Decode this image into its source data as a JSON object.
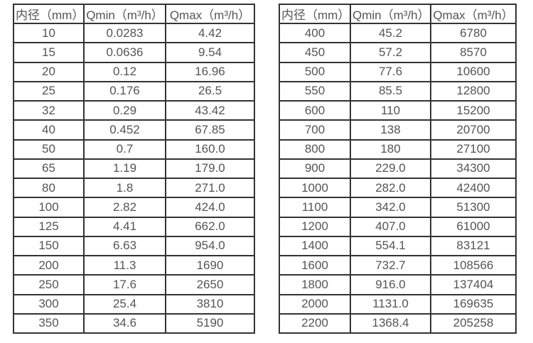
{
  "page": {
    "background_color": "#ffffff",
    "text_color": "#555555",
    "border_color": "#333333"
  },
  "tables": [
    {
      "name": "small-diameter-flow-table",
      "headers": [
        "内径（mm）",
        "Qmin（m³/h）",
        "Qmax（m³/h）"
      ],
      "rows": [
        [
          "10",
          "0.0283",
          "4.42"
        ],
        [
          "15",
          "0.0636",
          "9.54"
        ],
        [
          "20",
          "0.12",
          "16.96"
        ],
        [
          "25",
          "0.176",
          "26.5"
        ],
        [
          "32",
          "0.29",
          "43.42"
        ],
        [
          "40",
          "0.452",
          "67.85"
        ],
        [
          "50",
          "0.7",
          "160.0"
        ],
        [
          "65",
          "1.19",
          "179.0"
        ],
        [
          "80",
          "1.8",
          "271.0"
        ],
        [
          "100",
          "2.82",
          "424.0"
        ],
        [
          "125",
          "4.41",
          "662.0"
        ],
        [
          "150",
          "6.63",
          "954.0"
        ],
        [
          "200",
          "11.3",
          "1690"
        ],
        [
          "250",
          "17.6",
          "2650"
        ],
        [
          "300",
          "25.4",
          "3810"
        ],
        [
          "350",
          "34.6",
          "5190"
        ]
      ]
    },
    {
      "name": "large-diameter-flow-table",
      "headers": [
        "内径（mm）",
        "Qmin（m³/h）",
        "Qmax（m³/h）"
      ],
      "rows": [
        [
          "400",
          "45.2",
          "6780"
        ],
        [
          "450",
          "57.2",
          "8570"
        ],
        [
          "500",
          "77.6",
          "10600"
        ],
        [
          "550",
          "85.5",
          "12800"
        ],
        [
          "600",
          "110",
          "15200"
        ],
        [
          "700",
          "138",
          "20700"
        ],
        [
          "800",
          "180",
          "27100"
        ],
        [
          "900",
          "229.0",
          "34300"
        ],
        [
          "1000",
          "282.0",
          "42400"
        ],
        [
          "1100",
          "342.0",
          "51300"
        ],
        [
          "1200",
          "407.0",
          "61000"
        ],
        [
          "1400",
          "554.1",
          "83121"
        ],
        [
          "1600",
          "732.7",
          "108566"
        ],
        [
          "1800",
          "916.0",
          "137404"
        ],
        [
          "2000",
          "1131.0",
          "169635"
        ],
        [
          "2200",
          "1368.4",
          "205258"
        ]
      ]
    }
  ]
}
